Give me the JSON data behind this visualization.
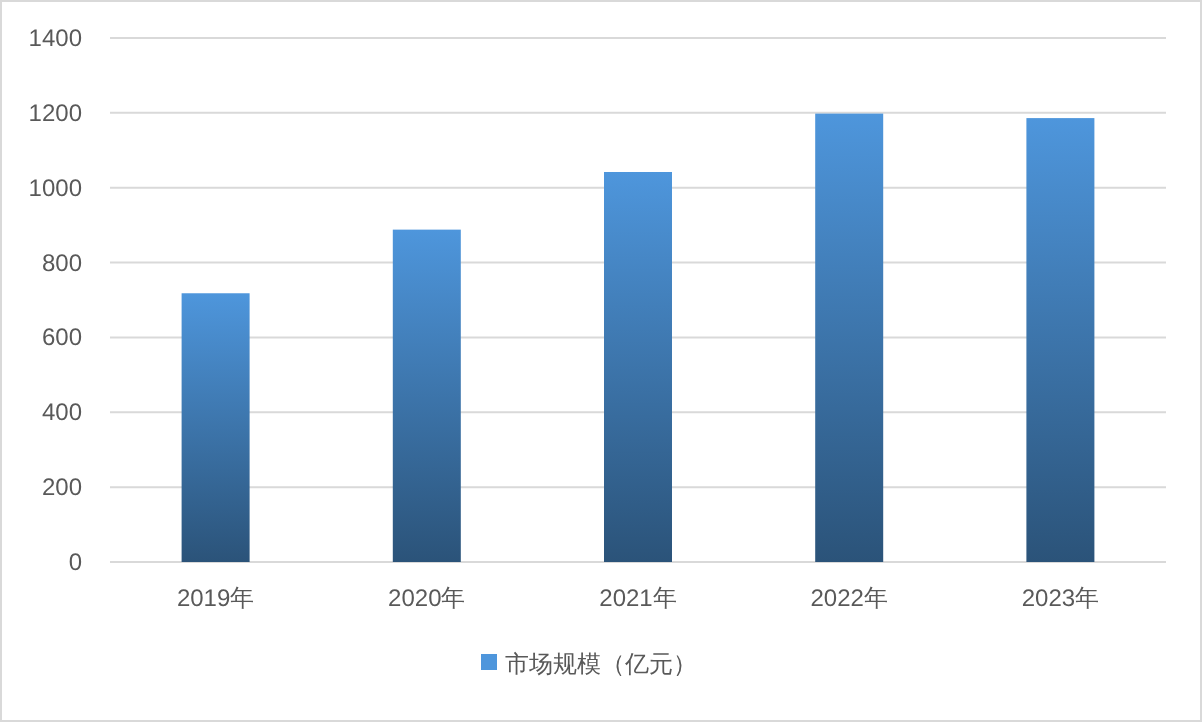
{
  "chart_data": {
    "type": "bar",
    "categories": [
      "2019年",
      "2020年",
      "2021年",
      "2022年",
      "2023年"
    ],
    "series": [
      {
        "name": "市场规模（亿元）",
        "color": "#4e96dc",
        "values": [
          718,
          888,
          1042,
          1198,
          1186
        ]
      }
    ],
    "ylim": [
      0,
      1400
    ],
    "yticks": [
      0,
      200,
      400,
      600,
      800,
      1000,
      1200,
      1400
    ],
    "grid": "y",
    "legend": "bottom"
  }
}
